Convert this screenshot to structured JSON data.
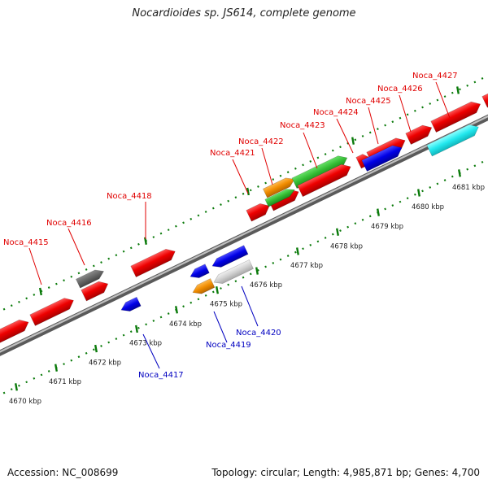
{
  "title": "Nocardioides sp. JS614, complete genome",
  "footer": {
    "accession": "Accession: NC_008699",
    "stats": "Topology: circular; Length: 4,985,871 bp; Genes: 4,700"
  },
  "colors": {
    "forward_label": "#e00000",
    "reverse_label": "#0000c0",
    "tick_green": "#0a7a0a",
    "axis_gray": "#8c8c8c"
  },
  "kbp_ticks": [
    {
      "label": "4670 kbp",
      "kbp": 4670
    },
    {
      "label": "4671 kbp",
      "kbp": 4671
    },
    {
      "label": "4672 kbp",
      "kbp": 4672
    },
    {
      "label": "4673 kbp",
      "kbp": 4673
    },
    {
      "label": "4674 kbp",
      "kbp": 4674
    },
    {
      "label": "4675 kbp",
      "kbp": 4675
    },
    {
      "label": "4676 kbp",
      "kbp": 4676
    },
    {
      "label": "4677 kbp",
      "kbp": 4677
    },
    {
      "label": "4678 kbp",
      "kbp": 4678
    },
    {
      "label": "4679 kbp",
      "kbp": 4679
    },
    {
      "label": "4680 kbp",
      "kbp": 4680
    },
    {
      "label": "4681 kbp",
      "kbp": 4681
    }
  ],
  "genes": [
    {
      "label": "Noca_4415",
      "strand": "+",
      "color": "red"
    },
    {
      "label": "Noca_4416",
      "strand": "+",
      "color": "red"
    },
    {
      "label": "Noca_4417",
      "strand": "-",
      "color": "blue"
    },
    {
      "label": "Noca_4418",
      "strand": "+",
      "color": "red"
    },
    {
      "label": "Noca_4419",
      "strand": "-",
      "color": "orange"
    },
    {
      "label": "Noca_4420",
      "strand": "-",
      "color": "blue"
    },
    {
      "label": "Noca_4421",
      "strand": "+",
      "color": "red"
    },
    {
      "label": "Noca_4422",
      "strand": "+",
      "color": "red"
    },
    {
      "label": "Noca_4423",
      "strand": "+",
      "color": "red"
    },
    {
      "label": "Noca_4424",
      "strand": "+",
      "color": "red"
    },
    {
      "label": "Noca_4425",
      "strand": "+",
      "color": "red"
    },
    {
      "label": "Noca_4426",
      "strand": "+",
      "color": "red"
    },
    {
      "label": "Noca_4427",
      "strand": "+",
      "color": "red"
    }
  ]
}
